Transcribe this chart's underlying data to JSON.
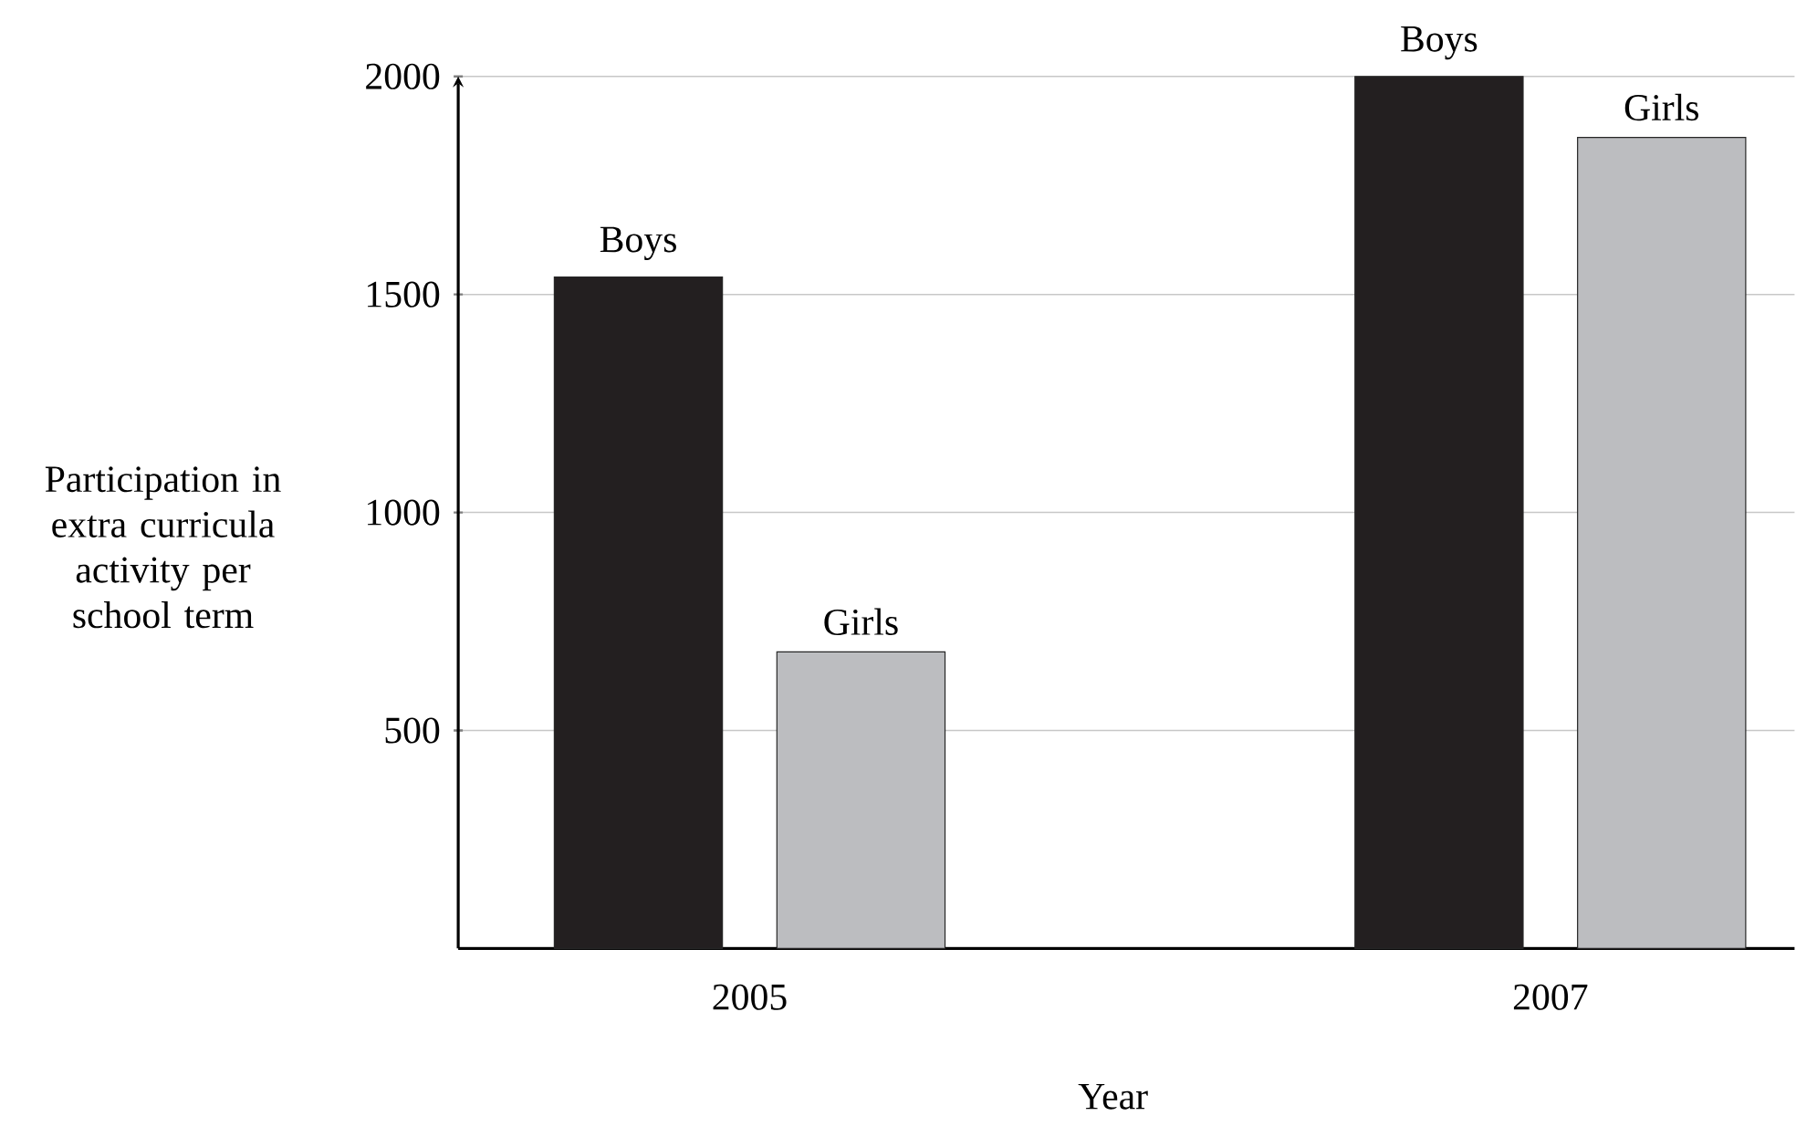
{
  "chart_data": {
    "type": "bar",
    "xlabel": "Year",
    "ylabel": "Participation in extra curricula activity per school term",
    "categories": [
      "2005",
      "2007"
    ],
    "series": [
      {
        "name": "Boys",
        "color": "#231f20",
        "values": [
          1540,
          2000
        ]
      },
      {
        "name": "Girls",
        "color": "#bcbdc0",
        "values": [
          680,
          1860
        ]
      }
    ],
    "ylim": [
      0,
      2000
    ],
    "yticks": [
      500,
      1000,
      1500,
      2000
    ],
    "grid": "y"
  }
}
